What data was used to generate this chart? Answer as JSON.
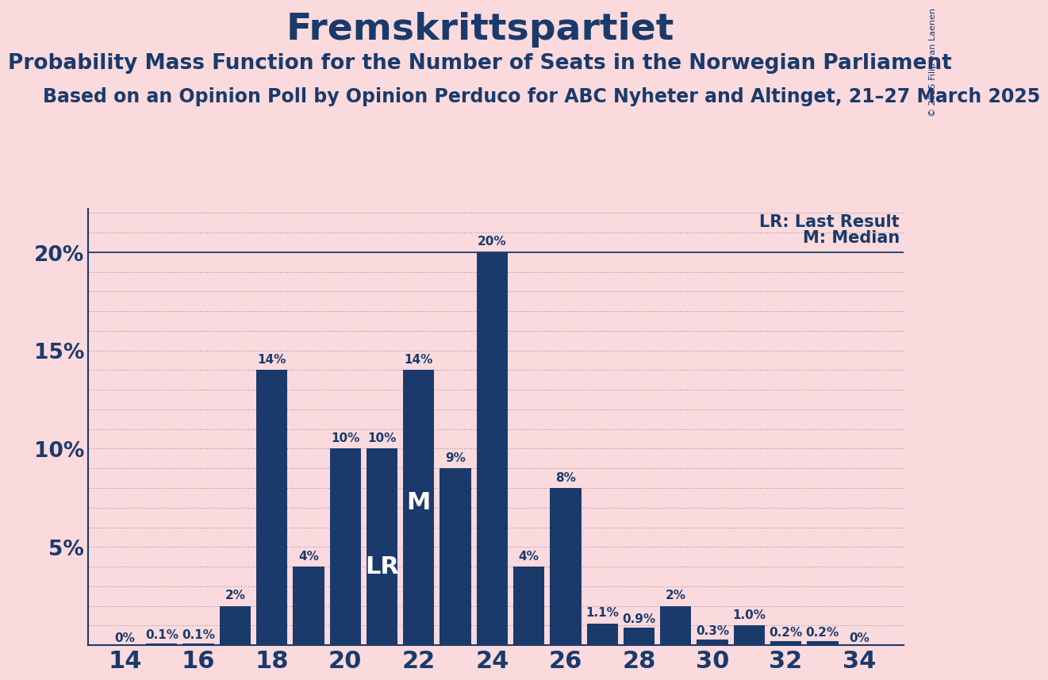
{
  "title": "Fremskrittspartiet",
  "subtitle1": "Probability Mass Function for the Number of Seats in the Norwegian Parliament",
  "subtitle2": "Based on an Opinion Poll by Opinion Perduco for ABC Nyheter and Altinget, 21–27 March 2025",
  "copyright": "© 2025 Filip van Laenen",
  "seats": [
    14,
    15,
    16,
    17,
    18,
    19,
    20,
    21,
    22,
    23,
    24,
    25,
    26,
    27,
    28,
    29,
    30,
    31,
    32,
    33,
    34
  ],
  "probabilities": [
    0.0,
    0.001,
    0.001,
    0.02,
    0.14,
    0.04,
    0.1,
    0.1,
    0.14,
    0.09,
    0.2,
    0.04,
    0.08,
    0.011,
    0.009,
    0.02,
    0.003,
    0.01,
    0.002,
    0.002,
    0.0
  ],
  "labels": [
    "0%",
    "0.1%",
    "0.1%",
    "2%",
    "14%",
    "4%",
    "10%",
    "10%",
    "14%",
    "9%",
    "20%",
    "4%",
    "8%",
    "1.1%",
    "0.9%",
    "2%",
    "0.3%",
    "1.0%",
    "0.2%",
    "0.2%",
    "0%"
  ],
  "bar_color": "#1a3a6b",
  "background_color": "#fadadd",
  "text_color": "#1a3a6b",
  "lr_seat": 21,
  "median_seat": 22,
  "yticks": [
    0.0,
    0.05,
    0.1,
    0.15,
    0.2
  ],
  "ytick_labels": [
    "",
    "5%",
    "10%",
    "15%",
    "20%"
  ],
  "xticks": [
    14,
    16,
    18,
    20,
    22,
    24,
    26,
    28,
    30,
    32,
    34
  ],
  "grid_color": "#1a3a6b",
  "title_fontsize": 34,
  "subtitle1_fontsize": 19,
  "subtitle2_fontsize": 17,
  "copyright_fontsize": 8,
  "label_fontsize": 11,
  "ytick_fontsize": 19,
  "xtick_fontsize": 22,
  "legend_fontsize": 15
}
